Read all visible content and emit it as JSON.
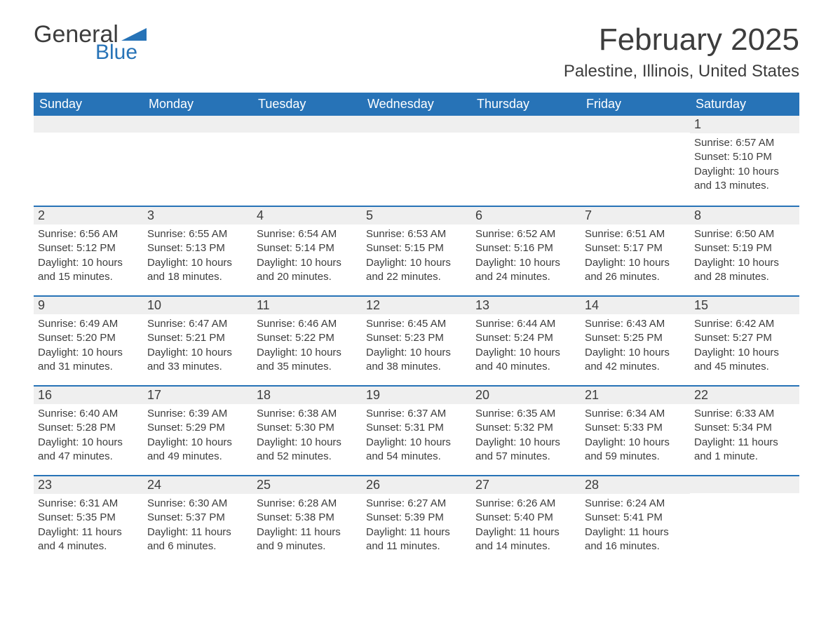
{
  "colors": {
    "accent": "#2773b7",
    "text": "#3d3d3d",
    "header_bg": "#2773b7",
    "header_fg": "#ffffff",
    "daynum_bg": "#efefef",
    "page_bg": "#ffffff"
  },
  "fonts": {
    "body_family": "Arial",
    "title_pt": 44,
    "location_pt": 24,
    "header_pt": 18,
    "daynum_pt": 18,
    "body_pt": 15
  },
  "logo": {
    "word1": "General",
    "word2": "Blue"
  },
  "title": "February 2025",
  "location": "Palestine, Illinois, United States",
  "weekday_labels": [
    "Sunday",
    "Monday",
    "Tuesday",
    "Wednesday",
    "Thursday",
    "Friday",
    "Saturday"
  ],
  "weeks": [
    [
      null,
      null,
      null,
      null,
      null,
      null,
      {
        "n": "1",
        "sr": "Sunrise: 6:57 AM",
        "ss": "Sunset: 5:10 PM",
        "dl": "Daylight: 10 hours and 13 minutes."
      }
    ],
    [
      {
        "n": "2",
        "sr": "Sunrise: 6:56 AM",
        "ss": "Sunset: 5:12 PM",
        "dl": "Daylight: 10 hours and 15 minutes."
      },
      {
        "n": "3",
        "sr": "Sunrise: 6:55 AM",
        "ss": "Sunset: 5:13 PM",
        "dl": "Daylight: 10 hours and 18 minutes."
      },
      {
        "n": "4",
        "sr": "Sunrise: 6:54 AM",
        "ss": "Sunset: 5:14 PM",
        "dl": "Daylight: 10 hours and 20 minutes."
      },
      {
        "n": "5",
        "sr": "Sunrise: 6:53 AM",
        "ss": "Sunset: 5:15 PM",
        "dl": "Daylight: 10 hours and 22 minutes."
      },
      {
        "n": "6",
        "sr": "Sunrise: 6:52 AM",
        "ss": "Sunset: 5:16 PM",
        "dl": "Daylight: 10 hours and 24 minutes."
      },
      {
        "n": "7",
        "sr": "Sunrise: 6:51 AM",
        "ss": "Sunset: 5:17 PM",
        "dl": "Daylight: 10 hours and 26 minutes."
      },
      {
        "n": "8",
        "sr": "Sunrise: 6:50 AM",
        "ss": "Sunset: 5:19 PM",
        "dl": "Daylight: 10 hours and 28 minutes."
      }
    ],
    [
      {
        "n": "9",
        "sr": "Sunrise: 6:49 AM",
        "ss": "Sunset: 5:20 PM",
        "dl": "Daylight: 10 hours and 31 minutes."
      },
      {
        "n": "10",
        "sr": "Sunrise: 6:47 AM",
        "ss": "Sunset: 5:21 PM",
        "dl": "Daylight: 10 hours and 33 minutes."
      },
      {
        "n": "11",
        "sr": "Sunrise: 6:46 AM",
        "ss": "Sunset: 5:22 PM",
        "dl": "Daylight: 10 hours and 35 minutes."
      },
      {
        "n": "12",
        "sr": "Sunrise: 6:45 AM",
        "ss": "Sunset: 5:23 PM",
        "dl": "Daylight: 10 hours and 38 minutes."
      },
      {
        "n": "13",
        "sr": "Sunrise: 6:44 AM",
        "ss": "Sunset: 5:24 PM",
        "dl": "Daylight: 10 hours and 40 minutes."
      },
      {
        "n": "14",
        "sr": "Sunrise: 6:43 AM",
        "ss": "Sunset: 5:25 PM",
        "dl": "Daylight: 10 hours and 42 minutes."
      },
      {
        "n": "15",
        "sr": "Sunrise: 6:42 AM",
        "ss": "Sunset: 5:27 PM",
        "dl": "Daylight: 10 hours and 45 minutes."
      }
    ],
    [
      {
        "n": "16",
        "sr": "Sunrise: 6:40 AM",
        "ss": "Sunset: 5:28 PM",
        "dl": "Daylight: 10 hours and 47 minutes."
      },
      {
        "n": "17",
        "sr": "Sunrise: 6:39 AM",
        "ss": "Sunset: 5:29 PM",
        "dl": "Daylight: 10 hours and 49 minutes."
      },
      {
        "n": "18",
        "sr": "Sunrise: 6:38 AM",
        "ss": "Sunset: 5:30 PM",
        "dl": "Daylight: 10 hours and 52 minutes."
      },
      {
        "n": "19",
        "sr": "Sunrise: 6:37 AM",
        "ss": "Sunset: 5:31 PM",
        "dl": "Daylight: 10 hours and 54 minutes."
      },
      {
        "n": "20",
        "sr": "Sunrise: 6:35 AM",
        "ss": "Sunset: 5:32 PM",
        "dl": "Daylight: 10 hours and 57 minutes."
      },
      {
        "n": "21",
        "sr": "Sunrise: 6:34 AM",
        "ss": "Sunset: 5:33 PM",
        "dl": "Daylight: 10 hours and 59 minutes."
      },
      {
        "n": "22",
        "sr": "Sunrise: 6:33 AM",
        "ss": "Sunset: 5:34 PM",
        "dl": "Daylight: 11 hours and 1 minute."
      }
    ],
    [
      {
        "n": "23",
        "sr": "Sunrise: 6:31 AM",
        "ss": "Sunset: 5:35 PM",
        "dl": "Daylight: 11 hours and 4 minutes."
      },
      {
        "n": "24",
        "sr": "Sunrise: 6:30 AM",
        "ss": "Sunset: 5:37 PM",
        "dl": "Daylight: 11 hours and 6 minutes."
      },
      {
        "n": "25",
        "sr": "Sunrise: 6:28 AM",
        "ss": "Sunset: 5:38 PM",
        "dl": "Daylight: 11 hours and 9 minutes."
      },
      {
        "n": "26",
        "sr": "Sunrise: 6:27 AM",
        "ss": "Sunset: 5:39 PM",
        "dl": "Daylight: 11 hours and 11 minutes."
      },
      {
        "n": "27",
        "sr": "Sunrise: 6:26 AM",
        "ss": "Sunset: 5:40 PM",
        "dl": "Daylight: 11 hours and 14 minutes."
      },
      {
        "n": "28",
        "sr": "Sunrise: 6:24 AM",
        "ss": "Sunset: 5:41 PM",
        "dl": "Daylight: 11 hours and 16 minutes."
      },
      null
    ]
  ]
}
